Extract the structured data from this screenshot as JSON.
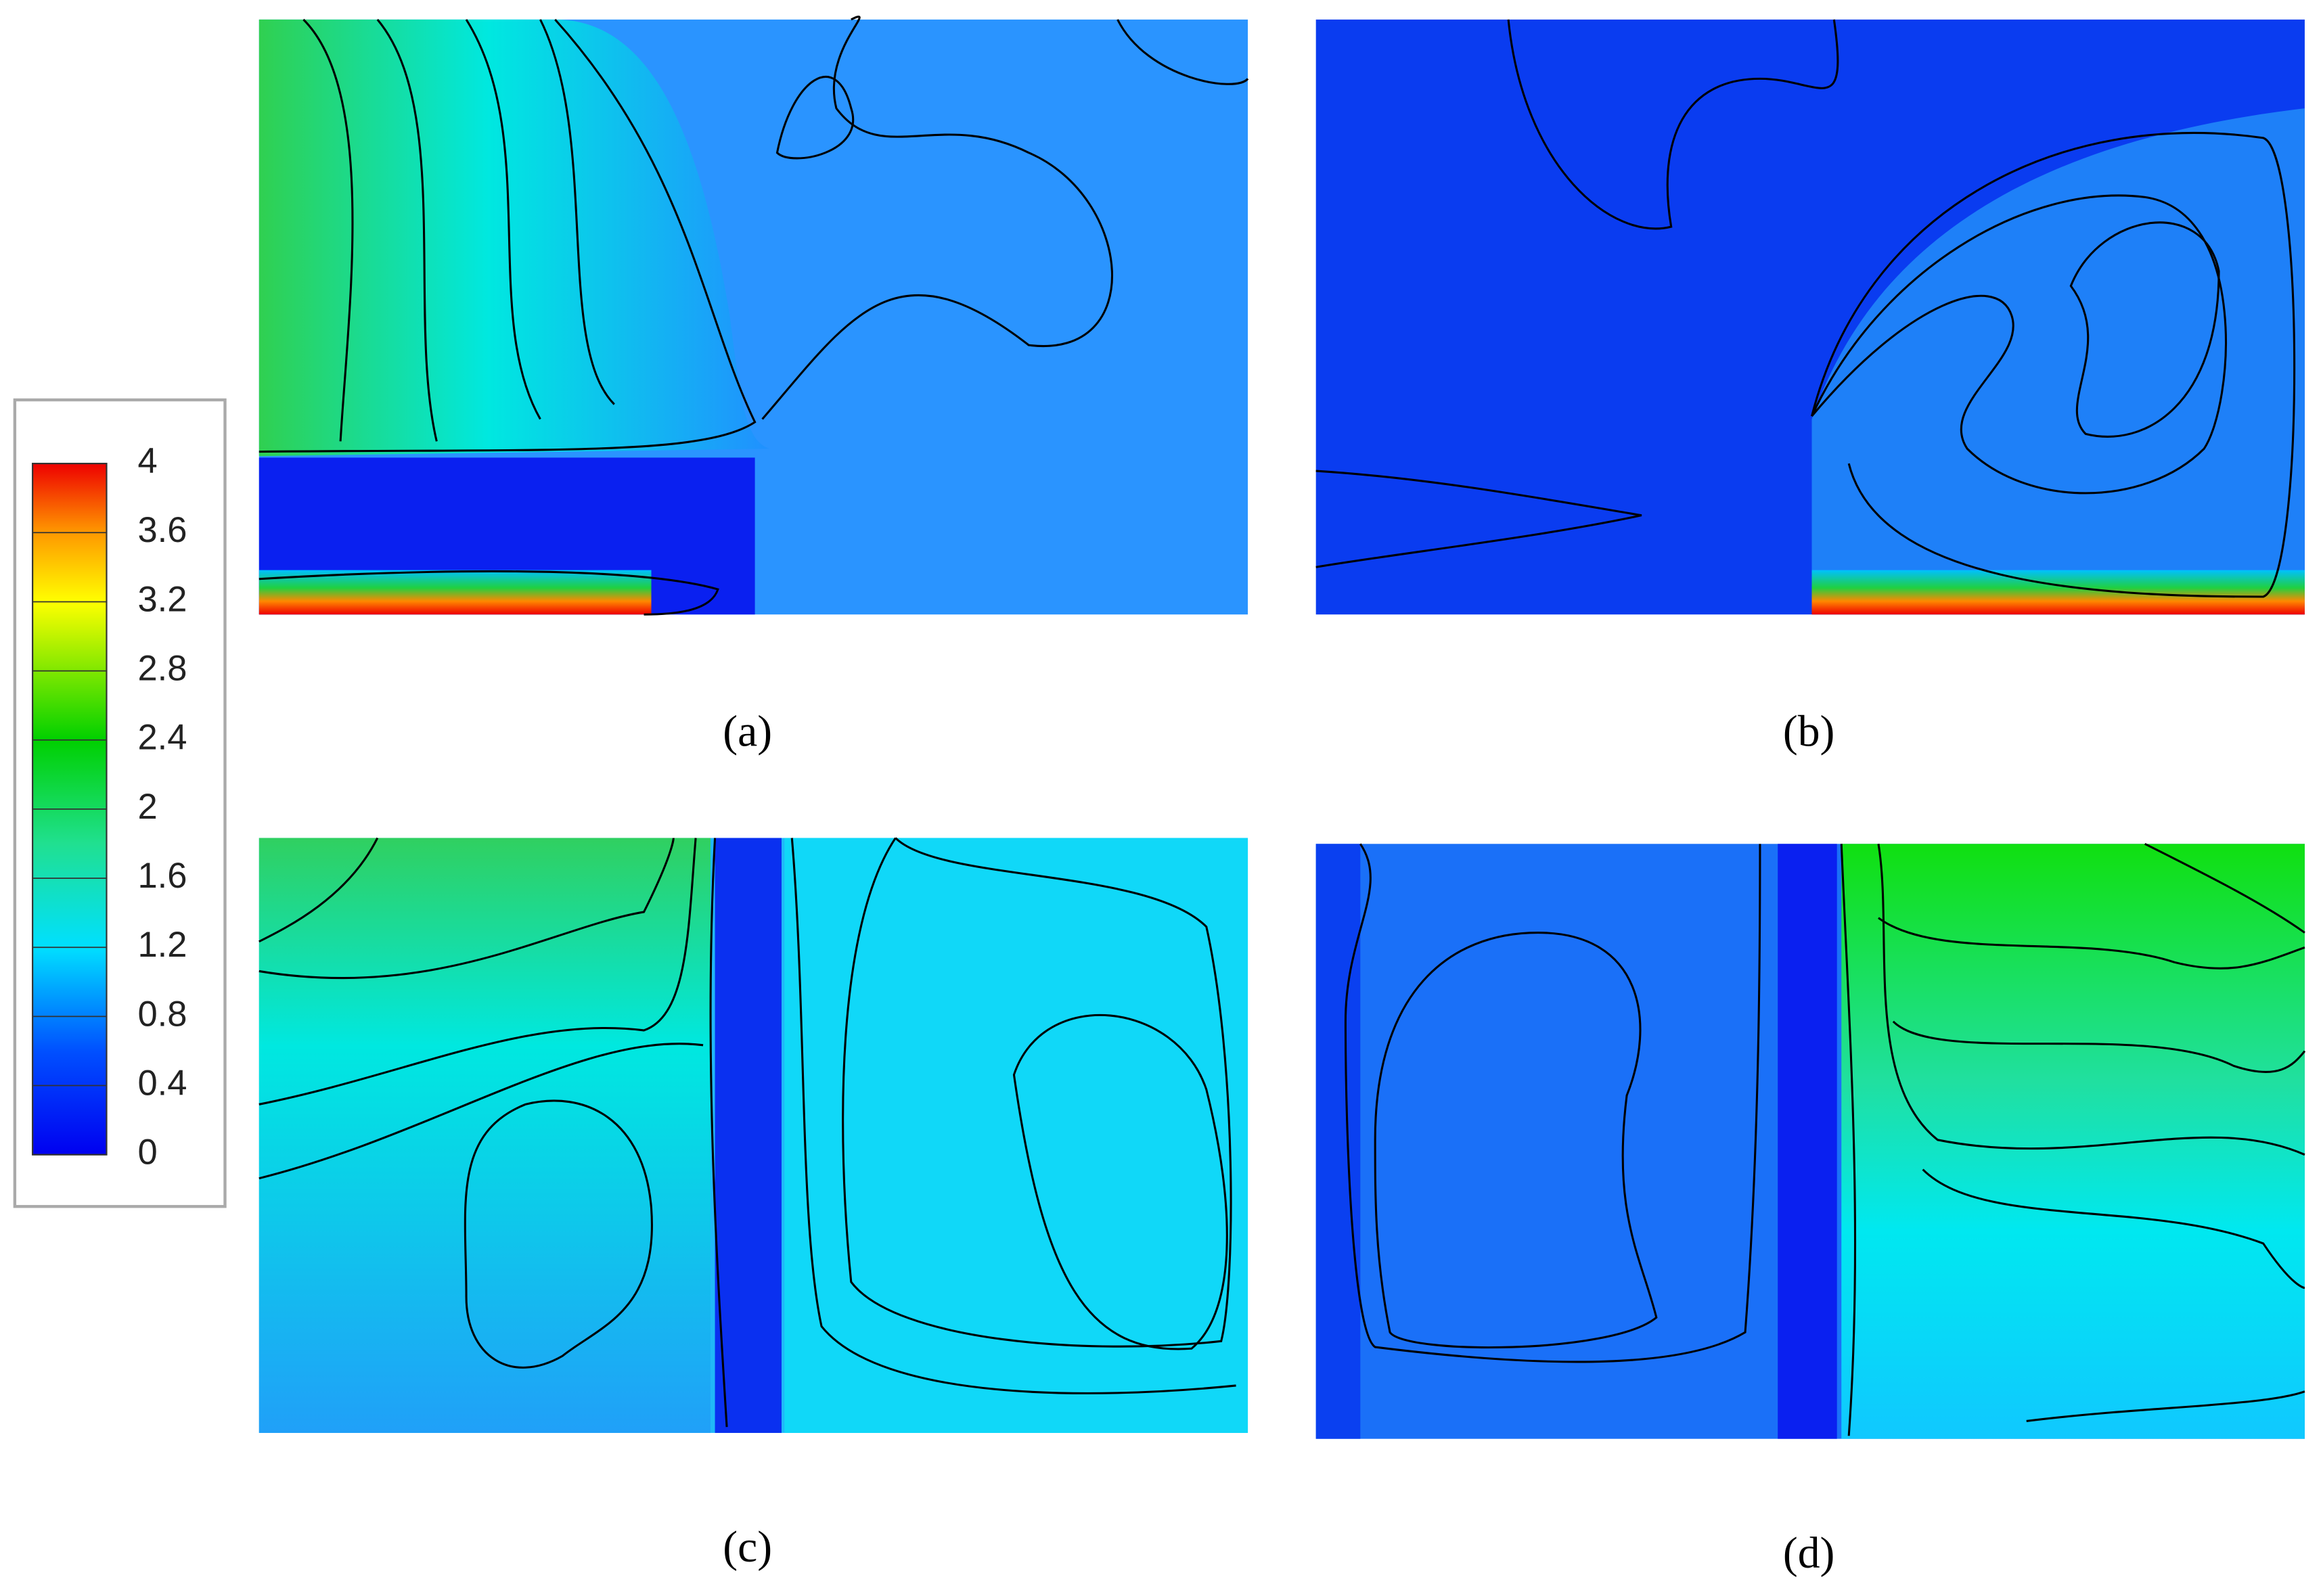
{
  "colorbar": {
    "ticks": [
      4,
      3.6,
      3.2,
      2.8,
      2.4,
      2,
      1.6,
      1.2,
      0.8,
      0.4,
      0
    ],
    "range": [
      0,
      4
    ]
  },
  "panels": [
    {
      "label": "(a)"
    },
    {
      "label": "(b)"
    },
    {
      "label": "(c)"
    },
    {
      "label": "(d)"
    }
  ]
}
